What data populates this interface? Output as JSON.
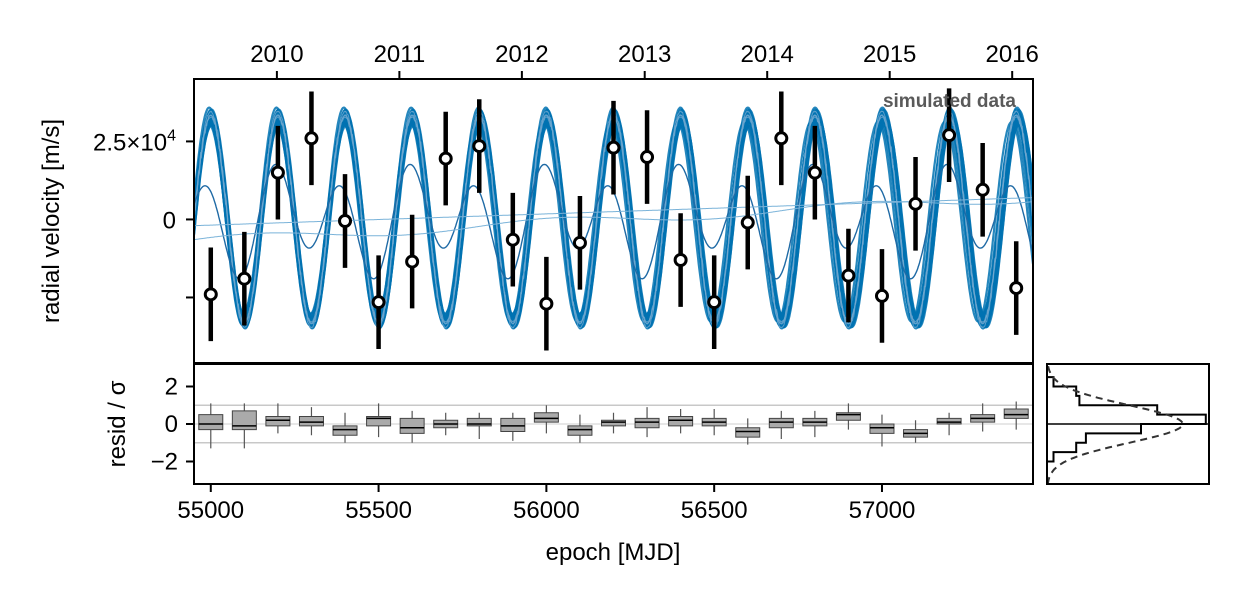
{
  "chart_data": [
    {
      "panel": "radial-velocity",
      "type": "scatter",
      "ylabel": "radial velocity [m/s]",
      "ytick_labels": [
        "2.5×10",
        "0"
      ],
      "ytick_exponent": "4",
      "ytick_values": [
        25000,
        0,
        -25000
      ],
      "top_axis_tick_labels": [
        "2010",
        "2011",
        "2012",
        "2013",
        "2014",
        "2015",
        "2016"
      ],
      "top_axis_tick_values": [
        55197,
        55562,
        55927,
        56293,
        56658,
        57023,
        57388
      ],
      "xlim": [
        54950,
        57450
      ],
      "ylim": [
        -46000,
        45000
      ],
      "annotation": "simulated data",
      "grid": false,
      "series": [
        {
          "role": "observations",
          "x": [
            55000,
            55100,
            55200,
            55300,
            55400,
            55500,
            55600,
            55700,
            55800,
            55900,
            56000,
            56100,
            56200,
            56300,
            56400,
            56500,
            56600,
            56700,
            56800,
            56900,
            57000,
            57100,
            57200,
            57300,
            57400
          ],
          "y": [
            -24000,
            -19000,
            15000,
            26000,
            -500,
            -26500,
            -13500,
            19500,
            23500,
            -6500,
            -27000,
            -7500,
            23000,
            20000,
            -13000,
            -26500,
            -1000,
            26000,
            15000,
            -18000,
            -24500,
            5000,
            27000,
            9500,
            -22000
          ],
          "yerr": [
            15000,
            15000,
            15000,
            15000,
            15000,
            15000,
            15000,
            15000,
            15000,
            15000,
            15000,
            15000,
            15000,
            15000,
            15000,
            15000,
            15000,
            15000,
            15000,
            15000,
            15000,
            15000,
            15000,
            15000,
            15000
          ],
          "marker": "open-circle",
          "color": "#000000"
        },
        {
          "role": "posterior-orbit-draws",
          "type": "line",
          "period_days": 200,
          "semi_amplitude": 34000,
          "color": "#0072B2"
        }
      ]
    },
    {
      "panel": "residuals",
      "type": "box",
      "ylabel": "resid / σ",
      "ytick_labels": [
        "2",
        "0",
        "−2"
      ],
      "ytick_values": [
        2,
        0,
        -2
      ],
      "ylim": [
        -3.2,
        3.2
      ],
      "reference_lines": [
        1,
        -1
      ],
      "xlabel": "epoch [MJD]",
      "xtick_labels": [
        "55000",
        "55500",
        "56000",
        "56500",
        "57000"
      ],
      "xtick_values": [
        55000,
        55500,
        56000,
        56500,
        57000
      ],
      "xlim": [
        54950,
        57450
      ],
      "box_color": "#aaaaaa",
      "boxes": [
        {
          "x": 55000,
          "q1": -0.3,
          "median": 0.0,
          "q3": 0.5,
          "low": -1.3,
          "high": 1.1
        },
        {
          "x": 55100,
          "q1": -0.3,
          "median": -0.1,
          "q3": 0.7,
          "low": -1.3,
          "high": 1.1
        },
        {
          "x": 55200,
          "q1": -0.1,
          "median": 0.2,
          "q3": 0.4,
          "low": -0.5,
          "high": 1.1
        },
        {
          "x": 55300,
          "q1": -0.1,
          "median": 0.1,
          "q3": 0.4,
          "low": -0.6,
          "high": 0.9
        },
        {
          "x": 55400,
          "q1": -0.6,
          "median": -0.3,
          "q3": -0.1,
          "low": -1.0,
          "high": 0.6
        },
        {
          "x": 55500,
          "q1": -0.1,
          "median": 0.3,
          "q3": 0.4,
          "low": -0.7,
          "high": 1.1
        },
        {
          "x": 55600,
          "q1": -0.5,
          "median": -0.2,
          "q3": 0.3,
          "low": -1.0,
          "high": 0.7
        },
        {
          "x": 55700,
          "q1": -0.2,
          "median": 0.0,
          "q3": 0.2,
          "low": -0.6,
          "high": 0.6
        },
        {
          "x": 55800,
          "q1": -0.1,
          "median": 0.0,
          "q3": 0.3,
          "low": -0.8,
          "high": 0.6
        },
        {
          "x": 55900,
          "q1": -0.4,
          "median": -0.1,
          "q3": 0.3,
          "low": -0.9,
          "high": 0.6
        },
        {
          "x": 56000,
          "q1": 0.1,
          "median": 0.3,
          "q3": 0.6,
          "low": -0.5,
          "high": 1.0
        },
        {
          "x": 56100,
          "q1": -0.6,
          "median": -0.3,
          "q3": -0.1,
          "low": -1.0,
          "high": 0.5
        },
        {
          "x": 56200,
          "q1": -0.1,
          "median": 0.1,
          "q3": 0.2,
          "low": -0.5,
          "high": 0.6
        },
        {
          "x": 56300,
          "q1": -0.2,
          "median": 0.1,
          "q3": 0.3,
          "low": -0.7,
          "high": 0.9
        },
        {
          "x": 56400,
          "q1": -0.1,
          "median": 0.2,
          "q3": 0.4,
          "low": -0.5,
          "high": 0.8
        },
        {
          "x": 56500,
          "q1": -0.1,
          "median": 0.1,
          "q3": 0.3,
          "low": -0.6,
          "high": 0.8
        },
        {
          "x": 56600,
          "q1": -0.7,
          "median": -0.4,
          "q3": -0.2,
          "low": -1.1,
          "high": 0.3
        },
        {
          "x": 56700,
          "q1": -0.2,
          "median": 0.1,
          "q3": 0.3,
          "low": -0.8,
          "high": 0.7
        },
        {
          "x": 56800,
          "q1": -0.1,
          "median": 0.1,
          "q3": 0.3,
          "low": -0.7,
          "high": 0.7
        },
        {
          "x": 56900,
          "q1": 0.2,
          "median": 0.5,
          "q3": 0.6,
          "low": -0.3,
          "high": 1.1
        },
        {
          "x": 57000,
          "q1": -0.5,
          "median": -0.2,
          "q3": 0.0,
          "low": -1.2,
          "high": 0.5
        },
        {
          "x": 57100,
          "q1": -0.7,
          "median": -0.5,
          "q3": -0.3,
          "low": -1.0,
          "high": 0.2
        },
        {
          "x": 57200,
          "q1": 0.0,
          "median": 0.1,
          "q3": 0.3,
          "low": -0.6,
          "high": 0.6
        },
        {
          "x": 57300,
          "q1": 0.1,
          "median": 0.3,
          "q3": 0.5,
          "low": -0.4,
          "high": 1.1
        },
        {
          "x": 57400,
          "q1": 0.3,
          "median": 0.5,
          "q3": 0.8,
          "low": -0.3,
          "high": 1.2
        }
      ]
    },
    {
      "panel": "residual-histogram",
      "type": "histogram",
      "orientation": "horizontal",
      "bin_edges": [
        -3.0,
        -2.5,
        -2.0,
        -1.5,
        -1.0,
        -0.5,
        0.0,
        0.5,
        1.0,
        1.5,
        2.0,
        2.5,
        3.0
      ],
      "counts": [
        0.0,
        0.0,
        0.04,
        0.18,
        0.24,
        0.58,
        0.98,
        0.68,
        0.2,
        0.18,
        0.04,
        0.0
      ],
      "reference_curve": "standard-normal",
      "reference_curve_style": "dashed"
    }
  ]
}
